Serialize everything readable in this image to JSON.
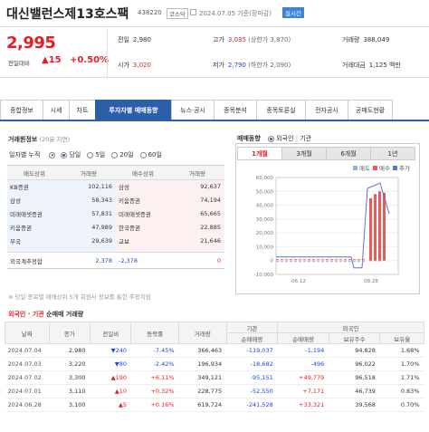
{
  "header": {
    "name": "대신밸런스제13호스팩",
    "code": "438220",
    "market": "코스닥",
    "date": "2024.07.05 기준(장마감)",
    "live_label": "실시간"
  },
  "price": {
    "current": "2,995",
    "change_label": "전일대비",
    "change_value": "▲15",
    "change_pct": "+0.50%",
    "prev_label": "전일",
    "prev": "2,980",
    "high_label": "고가",
    "high": "3,035",
    "upper_limit": "(상한가 3,870)",
    "volume_label": "거래량",
    "volume": "388,049",
    "open_label": "시가",
    "open": "3,020",
    "low_label": "저가",
    "low": "2,790",
    "lower_limit": "(하한가 2,090)",
    "amount_label": "거래대금",
    "amount": "1,125 백만"
  },
  "tabs": [
    "종합정보",
    "시세",
    "차트",
    "투자자별 매매동향",
    "뉴스·공시",
    "종목분석",
    "종목토론실",
    "전자공시",
    "공매도현황"
  ],
  "active_tab": 3,
  "trading": {
    "title": "거래원정보",
    "title_note": "(20분 지연)",
    "accum_label": "일자별 누적",
    "period_options": [
      "당일",
      "5일",
      "20일",
      "60일"
    ],
    "selected_period": 0,
    "headers": [
      "매도상위",
      "거래량",
      "매수상위",
      "거래량"
    ],
    "rows": [
      {
        "sell": "KB증권",
        "sell_vol": "102,116",
        "buy": "삼성",
        "buy_vol": "92,637"
      },
      {
        "sell": "삼성",
        "sell_vol": "58,343",
        "buy": "키움증권",
        "buy_vol": "74,194"
      },
      {
        "sell": "미래에셋증권",
        "sell_vol": "57,831",
        "buy": "미래에셋증권",
        "buy_vol": "65,665"
      },
      {
        "sell": "키움증권",
        "sell_vol": "47,989",
        "buy": "한국증권",
        "buy_vol": "22,885"
      },
      {
        "sell": "부국",
        "sell_vol": "29,639",
        "buy": "교보",
        "buy_vol": "21,646"
      }
    ],
    "foreign_label": "외국계추정합",
    "foreign_sell": "2,378",
    "foreign_net": "-2,378",
    "foreign_buy": "0",
    "note": "※ 당일 종목별 매매상위 5개 회원사 정보를 통한 추정치임"
  },
  "trend": {
    "title": "매매동향",
    "filter_foreign": "외국인",
    "filter_inst": "기관",
    "period_tabs": [
      "1개월",
      "3개월",
      "6개월",
      "1년"
    ],
    "active_period": 0,
    "legend": [
      "매도",
      "매수",
      "추가"
    ],
    "colors": {
      "sell": "#8ab4e8",
      "buy": "#e95a5a",
      "price": "#5577cc"
    }
  },
  "chart_data": {
    "type": "bar",
    "title": "",
    "x_ticks": [
      "06.12",
      "08.28"
    ],
    "y_ticks": [
      "60,000",
      "50,000",
      "40,000",
      "30,000",
      "20,000",
      "10,000",
      "0",
      "-10,000"
    ],
    "ylim": [
      -10000,
      60000
    ],
    "series": [
      {
        "name": "매수",
        "values": [
          45000,
          48000,
          50000,
          49000
        ]
      },
      {
        "name": "매도",
        "values": [
          -500,
          -400,
          -600,
          -300
        ]
      }
    ],
    "price_line_note": "line series rises sharply at right"
  },
  "foreign_table": {
    "title_prefix": "외국인 · 기관",
    "title_suffix": "순매매 거래량",
    "group_inst": "기관",
    "group_foreign": "외국인",
    "headers": [
      "날짜",
      "종가",
      "전일비",
      "등락률",
      "거래량",
      "순매매량",
      "순매매량",
      "보유주수",
      "보유율"
    ],
    "rows": [
      {
        "date": "2024.07.04",
        "close": "2,980",
        "change": "▼240",
        "change_dir": "down",
        "rate": "-7.45%",
        "volume": "366,463",
        "inst": "-119,037",
        "foreign": "-1,194",
        "holding": "94,828",
        "ratio": "1.68%"
      },
      {
        "date": "2024.07.03",
        "close": "3,220",
        "change": "▼80",
        "change_dir": "down",
        "rate": "-2.42%",
        "volume": "196,934",
        "inst": "-18,682",
        "foreign": "-496",
        "holding": "96,022",
        "ratio": "1.70%"
      },
      {
        "date": "2024.07.02",
        "close": "3,300",
        "change": "▲190",
        "change_dir": "up",
        "rate": "+6.11%",
        "volume": "349,121",
        "inst": "-95,151",
        "foreign": "+49,779",
        "holding": "96,518",
        "ratio": "1.71%"
      },
      {
        "date": "2024.07.01",
        "close": "3,110",
        "change": "▲10",
        "change_dir": "up",
        "rate": "+0.32%",
        "volume": "228,775",
        "inst": "-52,550",
        "foreign": "+7,171",
        "holding": "46,739",
        "ratio": "0.83%"
      },
      {
        "date": "2024.06.28",
        "close": "3,100",
        "change": "▲5",
        "change_dir": "up",
        "rate": "+0.16%",
        "volume": "619,724",
        "inst": "-241,528",
        "foreign": "+33,321",
        "holding": "39,568",
        "ratio": "0.70%"
      }
    ]
  }
}
